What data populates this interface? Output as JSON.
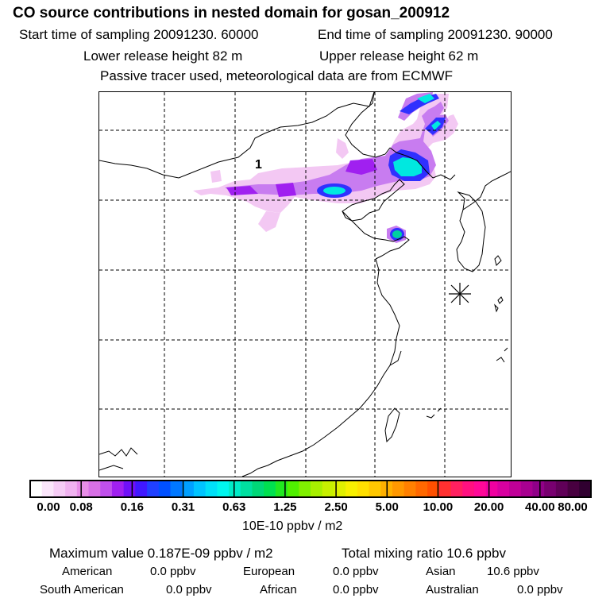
{
  "title": "CO  source contributions in nested domain for gosan_200912",
  "sampling": {
    "start": "Start time of sampling 20091230. 60000",
    "end": "End time of sampling 20091230. 90000"
  },
  "release": {
    "lower": "Lower release height   82 m",
    "upper": "Upper release height   62 m"
  },
  "note": "Passive tracer used, meteorological data are from ECMWF",
  "map": {
    "label": "1",
    "colors": {
      "light_pink": "#f3c8f3",
      "violet": "#c87cf0",
      "purple": "#a020f0",
      "blue": "#3030ff",
      "cyan": "#00e8e0",
      "teal": "#00d0a0"
    }
  },
  "colorbar": {
    "ticks": [
      "0.00",
      "0.08",
      "0.16",
      "0.31",
      "0.63",
      "1.25",
      "2.50",
      "5.00",
      "10.00",
      "20.00",
      "40.00",
      "80.00"
    ],
    "unit": "10E-10 ppbv / m2",
    "colors": [
      "#ffffff",
      "#fbe6fb",
      "#f6ccf6",
      "#f0b2f0",
      "#e88ee8",
      "#d870e6",
      "#c050ec",
      "#a020f0",
      "#7010f8",
      "#4018ff",
      "#2040ff",
      "#0050ff",
      "#0078ff",
      "#00a0ff",
      "#00c4ff",
      "#00e0f8",
      "#00f6ee",
      "#00ecc8",
      "#00e0a0",
      "#00d878",
      "#00e050",
      "#20e820",
      "#50f000",
      "#80f000",
      "#a8f000",
      "#c8f000",
      "#e0f000",
      "#f8f000",
      "#ffe000",
      "#ffc800",
      "#ffb000",
      "#ff9800",
      "#ff8000",
      "#ff6800",
      "#ff5000",
      "#ff3030",
      "#ff2060",
      "#ff1080",
      "#ff0898",
      "#f000a0",
      "#d800a0",
      "#c00098",
      "#a80090",
      "#900088",
      "#780070",
      "#600058",
      "#480040",
      "#300030"
    ]
  },
  "stats": {
    "max": "Maximum value  0.187E-09 ppbv / m2",
    "total": "Total mixing ratio      10.6 ppbv"
  },
  "regions": {
    "american": {
      "name": "American",
      "value": "0.0 ppbv"
    },
    "european": {
      "name": "European",
      "value": "0.0 ppbv"
    },
    "asian": {
      "name": "Asian",
      "value": "10.6 ppbv"
    },
    "south_american": {
      "name": "South American",
      "value": "0.0 ppbv"
    },
    "african": {
      "name": "African",
      "value": "0.0 ppbv"
    },
    "australian": {
      "name": "Australian",
      "value": "0.0 ppbv"
    }
  }
}
